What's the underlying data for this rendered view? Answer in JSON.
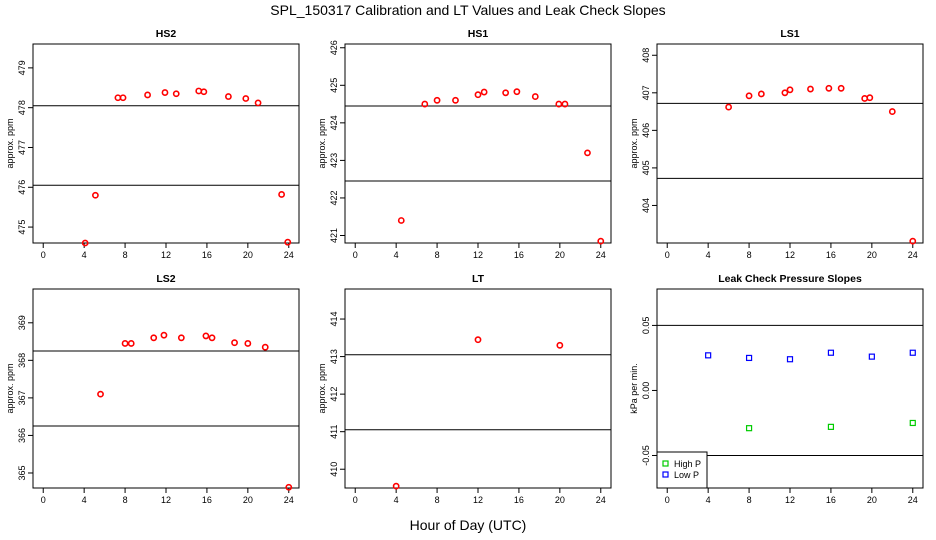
{
  "figure": {
    "title": "SPL_150317  Calibration and LT Values and Leak Check Slopes",
    "xlabel": "Hour of Day (UTC)"
  },
  "colors": {
    "red": "#ff0000",
    "green": "#00cc00",
    "blue": "#0000ff",
    "black": "#000000"
  },
  "chart_data": [
    {
      "id": "hs2",
      "type": "scatter",
      "title": "HS2",
      "ylabel": "approx. ppm",
      "xlim": [
        -1,
        25
      ],
      "ylim": [
        474.6,
        479.6
      ],
      "xticks": [
        0,
        4,
        8,
        12,
        16,
        20,
        24
      ],
      "xtick_labels": [
        "0",
        "4",
        "8",
        "12",
        "16",
        "20",
        "24"
      ],
      "yticks": [
        475,
        476,
        477,
        478,
        479
      ],
      "ytick_labels": [
        "475",
        "476",
        "477",
        "478",
        "479"
      ],
      "hlines": [
        478.05,
        476.05
      ],
      "series": [
        {
          "name": "HS2",
          "color": "red",
          "x": [
            4.1,
            5.1,
            7.3,
            7.8,
            10.2,
            11.9,
            13.0,
            15.2,
            15.7,
            18.1,
            19.8,
            21.0,
            23.3,
            23.9
          ],
          "y": [
            474.6,
            475.8,
            478.25,
            478.25,
            478.32,
            478.38,
            478.35,
            478.42,
            478.4,
            478.28,
            478.23,
            478.12,
            475.82,
            474.62
          ]
        }
      ]
    },
    {
      "id": "hs1",
      "type": "scatter",
      "title": "HS1",
      "ylabel": "approx. ppm",
      "xlim": [
        -1,
        25
      ],
      "ylim": [
        420.8,
        426.1
      ],
      "xticks": [
        0,
        4,
        8,
        12,
        16,
        20,
        24
      ],
      "xtick_labels": [
        "0",
        "4",
        "8",
        "12",
        "16",
        "20",
        "24"
      ],
      "yticks": [
        421,
        422,
        423,
        424,
        425,
        426
      ],
      "ytick_labels": [
        "421",
        "422",
        "423",
        "424",
        "425",
        "426"
      ],
      "hlines": [
        424.45,
        422.45
      ],
      "series": [
        {
          "name": "HS1",
          "color": "red",
          "x": [
            4.5,
            6.8,
            8.0,
            9.8,
            12.0,
            12.6,
            14.7,
            15.8,
            17.6,
            19.9,
            20.5,
            22.7,
            24.0
          ],
          "y": [
            421.4,
            424.5,
            424.6,
            424.6,
            424.75,
            424.82,
            424.8,
            424.83,
            424.7,
            424.5,
            424.5,
            423.2,
            420.85
          ]
        }
      ]
    },
    {
      "id": "ls1",
      "type": "scatter",
      "title": "LS1",
      "ylabel": "approx. ppm",
      "xlim": [
        -1,
        25
      ],
      "ylim": [
        403.0,
        408.3
      ],
      "xticks": [
        0,
        4,
        8,
        12,
        16,
        20,
        24
      ],
      "xtick_labels": [
        "0",
        "4",
        "8",
        "12",
        "16",
        "20",
        "24"
      ],
      "yticks": [
        404,
        405,
        406,
        407,
        408
      ],
      "ytick_labels": [
        "404",
        "405",
        "406",
        "407",
        "408"
      ],
      "hlines": [
        406.72,
        404.72
      ],
      "series": [
        {
          "name": "LS1",
          "color": "red",
          "x": [
            6.0,
            8.0,
            9.2,
            11.5,
            12.0,
            14.0,
            15.8,
            17.0,
            19.3,
            19.8,
            22.0,
            24.0
          ],
          "y": [
            406.62,
            406.92,
            406.97,
            407.0,
            407.08,
            407.1,
            407.12,
            407.12,
            406.85,
            406.87,
            406.5,
            403.05
          ]
        }
      ]
    },
    {
      "id": "ls2",
      "type": "scatter",
      "title": "LS2",
      "ylabel": "approx. ppm",
      "xlim": [
        -1,
        25
      ],
      "ylim": [
        364.6,
        369.9
      ],
      "xticks": [
        0,
        4,
        8,
        12,
        16,
        20,
        24
      ],
      "xtick_labels": [
        "0",
        "4",
        "8",
        "12",
        "16",
        "20",
        "24"
      ],
      "yticks": [
        365,
        366,
        367,
        368,
        369
      ],
      "ytick_labels": [
        "365",
        "366",
        "367",
        "368",
        "369"
      ],
      "hlines": [
        368.25,
        366.25
      ],
      "series": [
        {
          "name": "LS2",
          "color": "red",
          "x": [
            5.6,
            8.0,
            8.6,
            10.8,
            11.8,
            13.5,
            15.9,
            16.5,
            18.7,
            20.0,
            21.7,
            24.0
          ],
          "y": [
            367.1,
            368.45,
            368.45,
            368.6,
            368.67,
            368.6,
            368.65,
            368.6,
            368.47,
            368.45,
            368.35,
            364.62
          ]
        }
      ]
    },
    {
      "id": "lt",
      "type": "scatter",
      "title": "LT",
      "ylabel": "approx. ppm",
      "xlim": [
        -1,
        25
      ],
      "ylim": [
        409.5,
        414.8
      ],
      "xticks": [
        0,
        4,
        8,
        12,
        16,
        20,
        24
      ],
      "xtick_labels": [
        "0",
        "4",
        "8",
        "12",
        "16",
        "20",
        "24"
      ],
      "yticks": [
        410,
        411,
        412,
        413,
        414
      ],
      "ytick_labels": [
        "410",
        "411",
        "412",
        "413",
        "414"
      ],
      "hlines": [
        413.05,
        411.05
      ],
      "series": [
        {
          "name": "LT",
          "color": "red",
          "x": [
            4.0,
            12.0,
            20.0
          ],
          "y": [
            409.55,
            413.45,
            413.3
          ]
        }
      ]
    },
    {
      "id": "leak",
      "type": "scatter",
      "title": "Leak Check Pressure Slopes",
      "ylabel": "kPa per min.",
      "xlim": [
        -1,
        25
      ],
      "ylim": [
        -0.075,
        0.078
      ],
      "xticks": [
        0,
        4,
        8,
        12,
        16,
        20,
        24
      ],
      "xtick_labels": [
        "0",
        "4",
        "8",
        "12",
        "16",
        "20",
        "24"
      ],
      "yticks": [
        -0.05,
        0.0,
        0.05
      ],
      "ytick_labels": [
        "-0.05",
        "0.00",
        "0.05"
      ],
      "hlines": [
        0.05,
        -0.05
      ],
      "legend": {
        "position": "bottom-left",
        "entries": [
          "High P",
          "Low P"
        ]
      },
      "series": [
        {
          "name": "High P",
          "color": "green",
          "x": [
            8,
            16,
            24
          ],
          "y": [
            -0.029,
            -0.028,
            -0.025
          ]
        },
        {
          "name": "Low P",
          "color": "blue",
          "x": [
            4,
            8,
            12,
            16,
            20,
            24
          ],
          "y": [
            0.027,
            0.025,
            0.024,
            0.029,
            0.026,
            0.029
          ]
        }
      ]
    }
  ]
}
